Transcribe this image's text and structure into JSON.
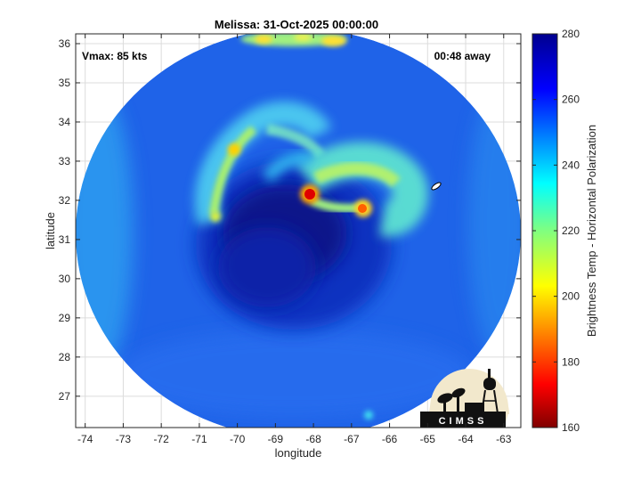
{
  "chart_data": {
    "type": "heatmap",
    "title": "Melissa: 31-Oct-2025 00:00:00",
    "xlabel": "longitude",
    "ylabel": "latitude",
    "xlim": [
      -74.25,
      -62.55
    ],
    "ylim": [
      26.2,
      36.25
    ],
    "xticks": [
      -74,
      -73,
      -72,
      -71,
      -70,
      -69,
      -68,
      -67,
      -66,
      -65,
      -64,
      -63
    ],
    "yticks": [
      27,
      28,
      29,
      30,
      31,
      32,
      33,
      34,
      35,
      36
    ],
    "grid": true,
    "annotations": {
      "vmax": "Vmax: 85 kts",
      "time_offset": "00:48 away"
    },
    "colorbar": {
      "label": "Brightness Temp - Horizontal Polarization",
      "range": [
        160,
        280
      ],
      "ticks": [
        160,
        180,
        200,
        220,
        240,
        260,
        280
      ],
      "colormap": "jet-reversed"
    },
    "swath": {
      "center": [
        -68.3,
        31.2
      ],
      "background_value": 255,
      "features": [
        {
          "name": "eye",
          "lon": -68.4,
          "lat": 31.1,
          "value": 266
        },
        {
          "name": "rainband-north",
          "lon": -69.2,
          "lat": 33.4,
          "value": 232
        },
        {
          "name": "rainband-west",
          "lon": -70.7,
          "lat": 32.4,
          "value": 236
        },
        {
          "name": "eyewall-north",
          "lon": -67.2,
          "lat": 32.4,
          "value": 226
        },
        {
          "name": "hot-spot",
          "lon": -68.0,
          "lat": 32.1,
          "value": 172
        },
        {
          "name": "hot-spot",
          "lon": -66.7,
          "lat": 31.8,
          "value": 186
        },
        {
          "name": "hot-spot",
          "lon": -70.0,
          "lat": 33.2,
          "value": 200
        }
      ]
    }
  },
  "logo": {
    "text": "CIMSS"
  }
}
